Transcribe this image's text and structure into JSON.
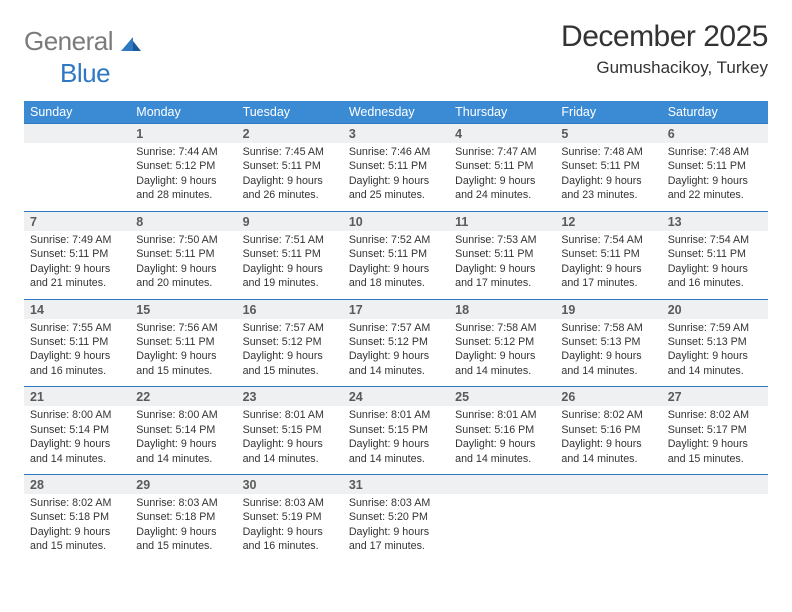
{
  "logo": {
    "general": "General",
    "blue": "Blue"
  },
  "title": "December 2025",
  "location": "Gumushacikoy, Turkey",
  "colors": {
    "header_bg": "#3b8bd4",
    "header_text": "#ffffff",
    "daynum_bg": "#eef0f1",
    "border": "#2f78c2",
    "body_text": "#333333",
    "logo_gray": "#7b7b7b",
    "logo_blue": "#2f78c2"
  },
  "weekdays": [
    "Sunday",
    "Monday",
    "Tuesday",
    "Wednesday",
    "Thursday",
    "Friday",
    "Saturday"
  ],
  "weeks": [
    {
      "nums": [
        "",
        "1",
        "2",
        "3",
        "4",
        "5",
        "6"
      ],
      "cells": [
        "",
        "Sunrise: 7:44 AM\nSunset: 5:12 PM\nDaylight: 9 hours and 28 minutes.",
        "Sunrise: 7:45 AM\nSunset: 5:11 PM\nDaylight: 9 hours and 26 minutes.",
        "Sunrise: 7:46 AM\nSunset: 5:11 PM\nDaylight: 9 hours and 25 minutes.",
        "Sunrise: 7:47 AM\nSunset: 5:11 PM\nDaylight: 9 hours and 24 minutes.",
        "Sunrise: 7:48 AM\nSunset: 5:11 PM\nDaylight: 9 hours and 23 minutes.",
        "Sunrise: 7:48 AM\nSunset: 5:11 PM\nDaylight: 9 hours and 22 minutes."
      ]
    },
    {
      "nums": [
        "7",
        "8",
        "9",
        "10",
        "11",
        "12",
        "13"
      ],
      "cells": [
        "Sunrise: 7:49 AM\nSunset: 5:11 PM\nDaylight: 9 hours and 21 minutes.",
        "Sunrise: 7:50 AM\nSunset: 5:11 PM\nDaylight: 9 hours and 20 minutes.",
        "Sunrise: 7:51 AM\nSunset: 5:11 PM\nDaylight: 9 hours and 19 minutes.",
        "Sunrise: 7:52 AM\nSunset: 5:11 PM\nDaylight: 9 hours and 18 minutes.",
        "Sunrise: 7:53 AM\nSunset: 5:11 PM\nDaylight: 9 hours and 17 minutes.",
        "Sunrise: 7:54 AM\nSunset: 5:11 PM\nDaylight: 9 hours and 17 minutes.",
        "Sunrise: 7:54 AM\nSunset: 5:11 PM\nDaylight: 9 hours and 16 minutes."
      ]
    },
    {
      "nums": [
        "14",
        "15",
        "16",
        "17",
        "18",
        "19",
        "20"
      ],
      "cells": [
        "Sunrise: 7:55 AM\nSunset: 5:11 PM\nDaylight: 9 hours and 16 minutes.",
        "Sunrise: 7:56 AM\nSunset: 5:11 PM\nDaylight: 9 hours and 15 minutes.",
        "Sunrise: 7:57 AM\nSunset: 5:12 PM\nDaylight: 9 hours and 15 minutes.",
        "Sunrise: 7:57 AM\nSunset: 5:12 PM\nDaylight: 9 hours and 14 minutes.",
        "Sunrise: 7:58 AM\nSunset: 5:12 PM\nDaylight: 9 hours and 14 minutes.",
        "Sunrise: 7:58 AM\nSunset: 5:13 PM\nDaylight: 9 hours and 14 minutes.",
        "Sunrise: 7:59 AM\nSunset: 5:13 PM\nDaylight: 9 hours and 14 minutes."
      ]
    },
    {
      "nums": [
        "21",
        "22",
        "23",
        "24",
        "25",
        "26",
        "27"
      ],
      "cells": [
        "Sunrise: 8:00 AM\nSunset: 5:14 PM\nDaylight: 9 hours and 14 minutes.",
        "Sunrise: 8:00 AM\nSunset: 5:14 PM\nDaylight: 9 hours and 14 minutes.",
        "Sunrise: 8:01 AM\nSunset: 5:15 PM\nDaylight: 9 hours and 14 minutes.",
        "Sunrise: 8:01 AM\nSunset: 5:15 PM\nDaylight: 9 hours and 14 minutes.",
        "Sunrise: 8:01 AM\nSunset: 5:16 PM\nDaylight: 9 hours and 14 minutes.",
        "Sunrise: 8:02 AM\nSunset: 5:16 PM\nDaylight: 9 hours and 14 minutes.",
        "Sunrise: 8:02 AM\nSunset: 5:17 PM\nDaylight: 9 hours and 15 minutes."
      ]
    },
    {
      "nums": [
        "28",
        "29",
        "30",
        "31",
        "",
        "",
        ""
      ],
      "cells": [
        "Sunrise: 8:02 AM\nSunset: 5:18 PM\nDaylight: 9 hours and 15 minutes.",
        "Sunrise: 8:03 AM\nSunset: 5:18 PM\nDaylight: 9 hours and 15 minutes.",
        "Sunrise: 8:03 AM\nSunset: 5:19 PM\nDaylight: 9 hours and 16 minutes.",
        "Sunrise: 8:03 AM\nSunset: 5:20 PM\nDaylight: 9 hours and 17 minutes.",
        "",
        "",
        ""
      ]
    }
  ]
}
